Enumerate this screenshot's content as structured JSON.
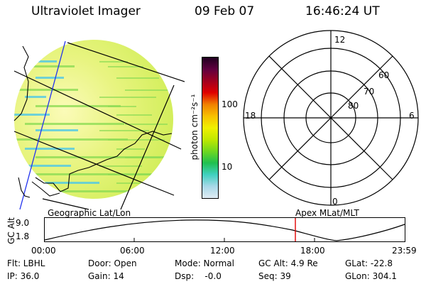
{
  "header": {
    "instrument": "Ultraviolet Imager",
    "date": "09 Feb 07",
    "time": "16:46:24 UT"
  },
  "image_panel": {
    "label": "Geographic Lat/Lon",
    "colors": {
      "background": "#d8f060",
      "high": "#fbfbb8",
      "band": "#8ddc55",
      "low": "#4fc8e6"
    }
  },
  "colorbar": {
    "unit_label": "photon cm⁻²s⁻¹",
    "ticks": [
      "100",
      "10"
    ],
    "scale": "log",
    "colors": [
      "#e0ecf4",
      "#a8d8e8",
      "#40d0c0",
      "#20c050",
      "#70d820",
      "#c0e800",
      "#f0f000",
      "#f8c000",
      "#f08000",
      "#e00000",
      "#a00020",
      "#600040",
      "#200020"
    ]
  },
  "polar_plot": {
    "label": "Apex MLat/MLT",
    "mlt_labels": {
      "top": "12",
      "left": "18",
      "right": "6",
      "bottom": "0"
    },
    "mlat_labels": [
      "60",
      "70",
      "80"
    ]
  },
  "altitude_plot": {
    "ylabel": "GC Alt",
    "yticks": [
      "9.0",
      "1.8"
    ],
    "xticks": [
      "00:00",
      "06:00",
      "12:00",
      "18:00",
      "23:59"
    ],
    "marker_color": "#e00000"
  },
  "footer": {
    "flt": "Flt: LBHL",
    "ip": "IP: 36.0",
    "door": "Door: Open",
    "gain": "Gain: 14",
    "mode": "Mode: Normal",
    "dsp": "Dsp:    -0.0",
    "gc_alt": "GC Alt: 4.9 Re",
    "seq": "Seq: 39",
    "glat": "GLat: -22.8",
    "glon": "GLon: 304.1"
  }
}
